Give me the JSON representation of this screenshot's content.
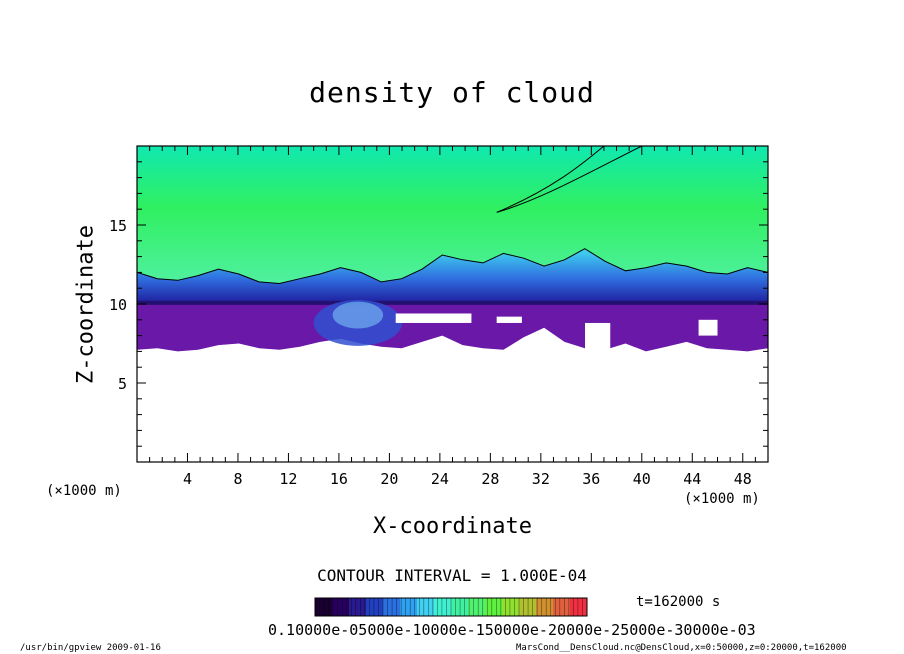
{
  "chart_data": {
    "type": "heatmap",
    "title": "density of cloud",
    "xlabel": "X-coordinate",
    "ylabel": "Z-coordinate",
    "x_unit_left": "(×1000 m)",
    "x_unit_right": "(×1000 m)",
    "xlim": [
      0,
      50
    ],
    "ylim": [
      0,
      20
    ],
    "x_ticks": [
      "4",
      "8",
      "12",
      "16",
      "20",
      "24",
      "28",
      "32",
      "36",
      "40",
      "44",
      "48"
    ],
    "y_ticks": [
      "5",
      "10",
      "15"
    ],
    "cloud_top_z": [
      12.0,
      11.6,
      11.5,
      11.8,
      12.2,
      11.9,
      11.4,
      11.3,
      11.6,
      11.9,
      12.3,
      12.0,
      11.4,
      11.6,
      12.2,
      13.1,
      12.8,
      12.6,
      13.2,
      12.9,
      12.4,
      12.8,
      13.5,
      12.7,
      12.1,
      12.3,
      12.6,
      12.4,
      12.0,
      11.9,
      12.3,
      12.0
    ],
    "cloud_bottom_z": [
      7.1,
      7.2,
      7.0,
      7.1,
      7.4,
      7.5,
      7.2,
      7.1,
      7.3,
      7.6,
      7.8,
      7.5,
      7.3,
      7.2,
      7.6,
      8.0,
      7.4,
      7.2,
      7.1,
      7.9,
      8.5,
      7.6,
      7.2,
      7.1,
      7.5,
      7.0,
      7.3,
      7.6,
      7.2,
      7.1,
      7.0,
      7.2
    ],
    "contour_interval_label": "CONTOUR INTERVAL = 1.000E-04",
    "time_label": "t=162000  s",
    "colorbar_colors": [
      "#1a0030",
      "#280060",
      "#2a1a90",
      "#2040c0",
      "#2a70e0",
      "#30a0f0",
      "#40d0f0",
      "#40f0d0",
      "#40f0a0",
      "#50f070",
      "#60f040",
      "#90e030",
      "#b0c030",
      "#d09030",
      "#e06040",
      "#f03040"
    ],
    "colorbar_ticks_text": "0.10000e-05000e-10000e-150000e-20000e-25000e-30000e-03"
  },
  "footer": {
    "left": "/usr/bin/gpview   2009-01-16",
    "right": "MarsCond__DensCloud.nc@DensCloud,x=0:50000,z=0:20000,t=162000"
  }
}
